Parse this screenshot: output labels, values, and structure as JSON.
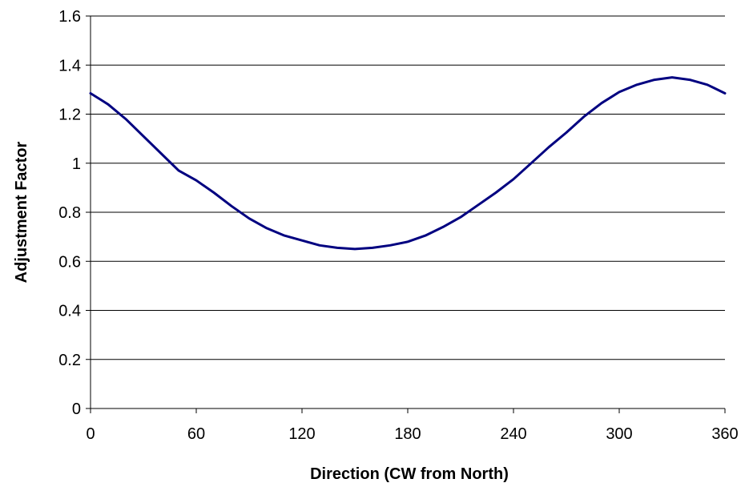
{
  "chart_data": {
    "type": "line",
    "title": "",
    "xlabel": "Direction (CW from North)",
    "ylabel": "Adjustment Factor",
    "xlim": [
      0,
      360
    ],
    "ylim": [
      0,
      1.6
    ],
    "x_ticks": [
      0,
      60,
      120,
      180,
      240,
      300,
      360
    ],
    "x_tick_labels": [
      "0",
      "60",
      "120",
      "180",
      "240",
      "300",
      "360"
    ],
    "y_ticks": [
      0,
      0.2,
      0.4,
      0.6,
      0.8,
      1.0,
      1.2,
      1.4,
      1.6
    ],
    "y_tick_labels": [
      "0",
      "0.2",
      "0.4",
      "0.6",
      "0.8",
      "1",
      "1.2",
      "1.4",
      "1.6"
    ],
    "grid": "horizontal",
    "legend": "none",
    "series": [
      {
        "color": "#000080",
        "x": [
          0,
          10,
          20,
          30,
          40,
          50,
          60,
          70,
          80,
          90,
          100,
          110,
          120,
          130,
          140,
          150,
          160,
          170,
          180,
          190,
          200,
          210,
          220,
          230,
          240,
          250,
          260,
          270,
          280,
          290,
          300,
          310,
          320,
          330,
          340,
          350,
          360
        ],
        "y": [
          1.285,
          1.24,
          1.18,
          1.11,
          1.04,
          0.97,
          0.93,
          0.88,
          0.825,
          0.775,
          0.735,
          0.705,
          0.685,
          0.665,
          0.655,
          0.65,
          0.655,
          0.665,
          0.68,
          0.705,
          0.74,
          0.78,
          0.83,
          0.88,
          0.935,
          1.0,
          1.065,
          1.125,
          1.19,
          1.245,
          1.29,
          1.32,
          1.34,
          1.35,
          1.34,
          1.32,
          1.285
        ]
      }
    ]
  }
}
